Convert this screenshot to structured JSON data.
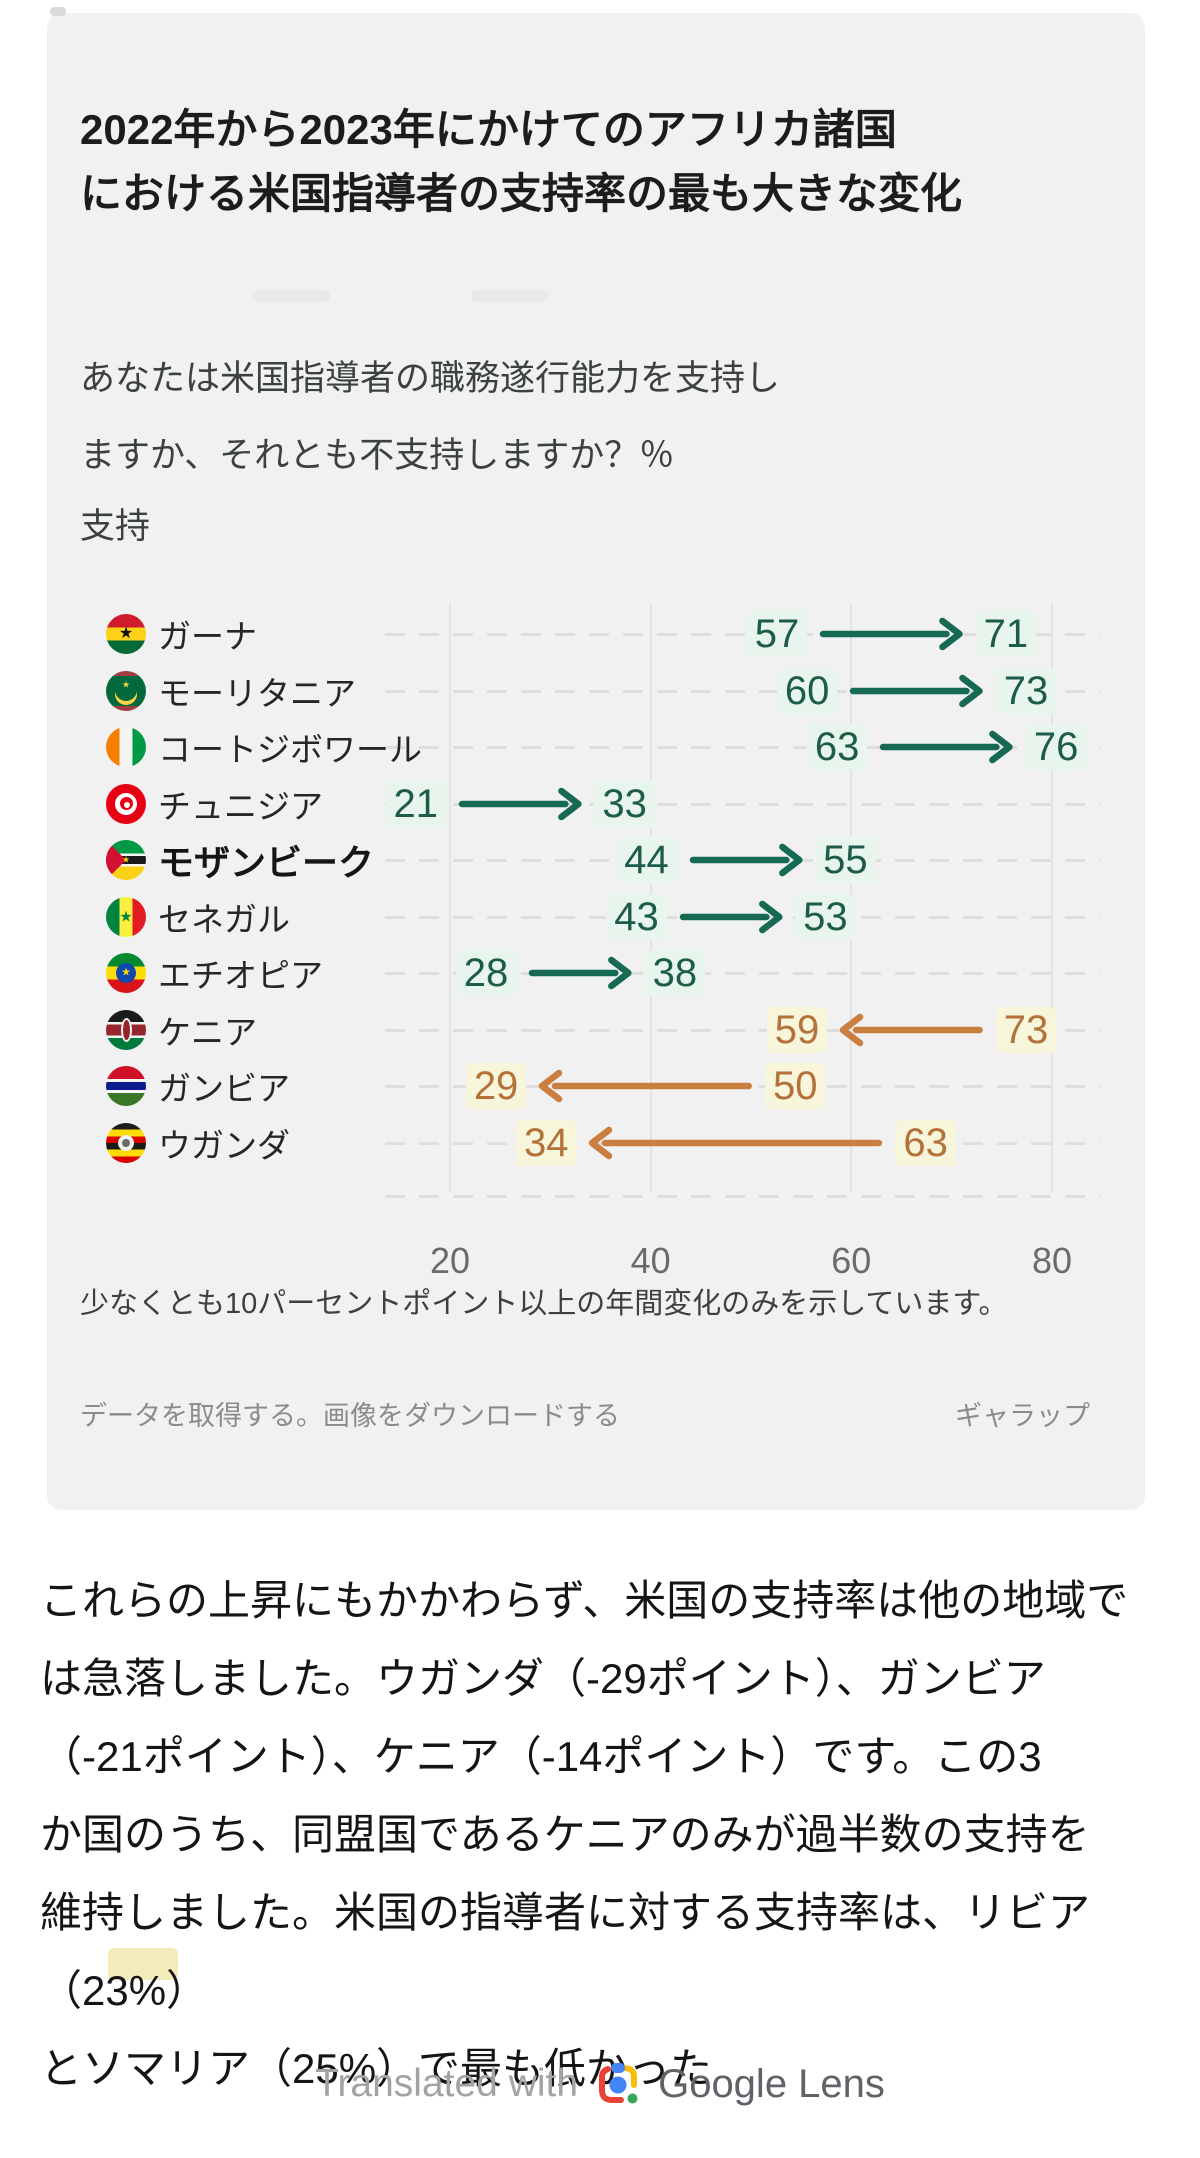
{
  "card": {
    "title_lines": [
      "2022年から2023年にかけてのアフリカ諸国",
      "における米国指導者の支持率の最も大きな変化"
    ],
    "subtitle_lines": [
      "あなたは米国指導者の職務遂行能力を支持し",
      "ますか、それとも不支持しますか？％"
    ],
    "measure_label": "支持",
    "note": "少なくとも10パーセントポイント以上の年間変化のみを示しています。",
    "footer": {
      "get_data": "データを取得する。",
      "download_image": "画像をダウンロードする",
      "source": "ギャラップ"
    }
  },
  "chart_data": {
    "type": "arrow-dumbbell",
    "title": "2022年から2023年にかけてのアフリカ諸国における米国指導者の支持率の最も大きな変化",
    "question": "あなたは米国指導者の職務遂行能力を支持しますか、それとも不支持しますか？％ 支持",
    "x_axis": {
      "ticks": [
        20,
        40,
        60,
        80
      ],
      "min": 20,
      "max": 80,
      "grid": true
    },
    "rows": [
      {
        "country": "ガーナ",
        "flag": "ghana",
        "from": 57,
        "to": 71,
        "trend": "increase"
      },
      {
        "country": "モーリタニア",
        "flag": "mauritania",
        "from": 60,
        "to": 73,
        "trend": "increase"
      },
      {
        "country": "コートジボワール",
        "flag": "cote-divoire",
        "from": 63,
        "to": 76,
        "trend": "increase"
      },
      {
        "country": "チュニジア",
        "flag": "tunisia",
        "from": 21,
        "to": 33,
        "trend": "increase"
      },
      {
        "country": "モザンビーク",
        "flag": "mozambique",
        "from": 44,
        "to": 55,
        "trend": "increase",
        "label_bold": true
      },
      {
        "country": "セネガル",
        "flag": "senegal",
        "from": 43,
        "to": 53,
        "trend": "increase"
      },
      {
        "country": "エチオピア",
        "flag": "ethiopia",
        "from": 28,
        "to": 38,
        "trend": "increase"
      },
      {
        "country": "ケニア",
        "flag": "kenya",
        "from": 73,
        "to": 59,
        "trend": "decrease"
      },
      {
        "country": "ガンビア",
        "flag": "gambia",
        "from": 50,
        "to": 29,
        "trend": "decrease"
      },
      {
        "country": "ウガンダ",
        "flag": "uganda",
        "from": 63,
        "to": 34,
        "trend": "decrease"
      }
    ],
    "note": "少なくとも10パーセントポイント以上の年間変化のみを示しています。",
    "colors": {
      "increase_arrow": "#166a54",
      "increase_text": "#1d5b4b",
      "increase_highlight": "#e7f5ec",
      "decrease_arrow": "#ca7f41",
      "decrease_text": "#b5713a",
      "decrease_highlight": "#f7f5da",
      "gridline": "#e3e3e3",
      "card_background": "#f1f1f1"
    }
  },
  "body_text": {
    "lines": [
      "これらの上昇にもかかわらず、米国の支持率は他の地域で",
      "は急落しました。ウガンダ（-29ポイント）、ガンビア",
      "（-21ポイント）、ケニア（-14ポイント）です。この3",
      "か国のうち、同盟国であるケニアのみが過半数の支持を",
      "維持しました。米国の指導者に対する支持率は、リビア（23%）",
      "とソマリア（25%）で最も低かった"
    ]
  },
  "attribution": {
    "prefix": "Translated with",
    "brand": "Google Lens"
  }
}
